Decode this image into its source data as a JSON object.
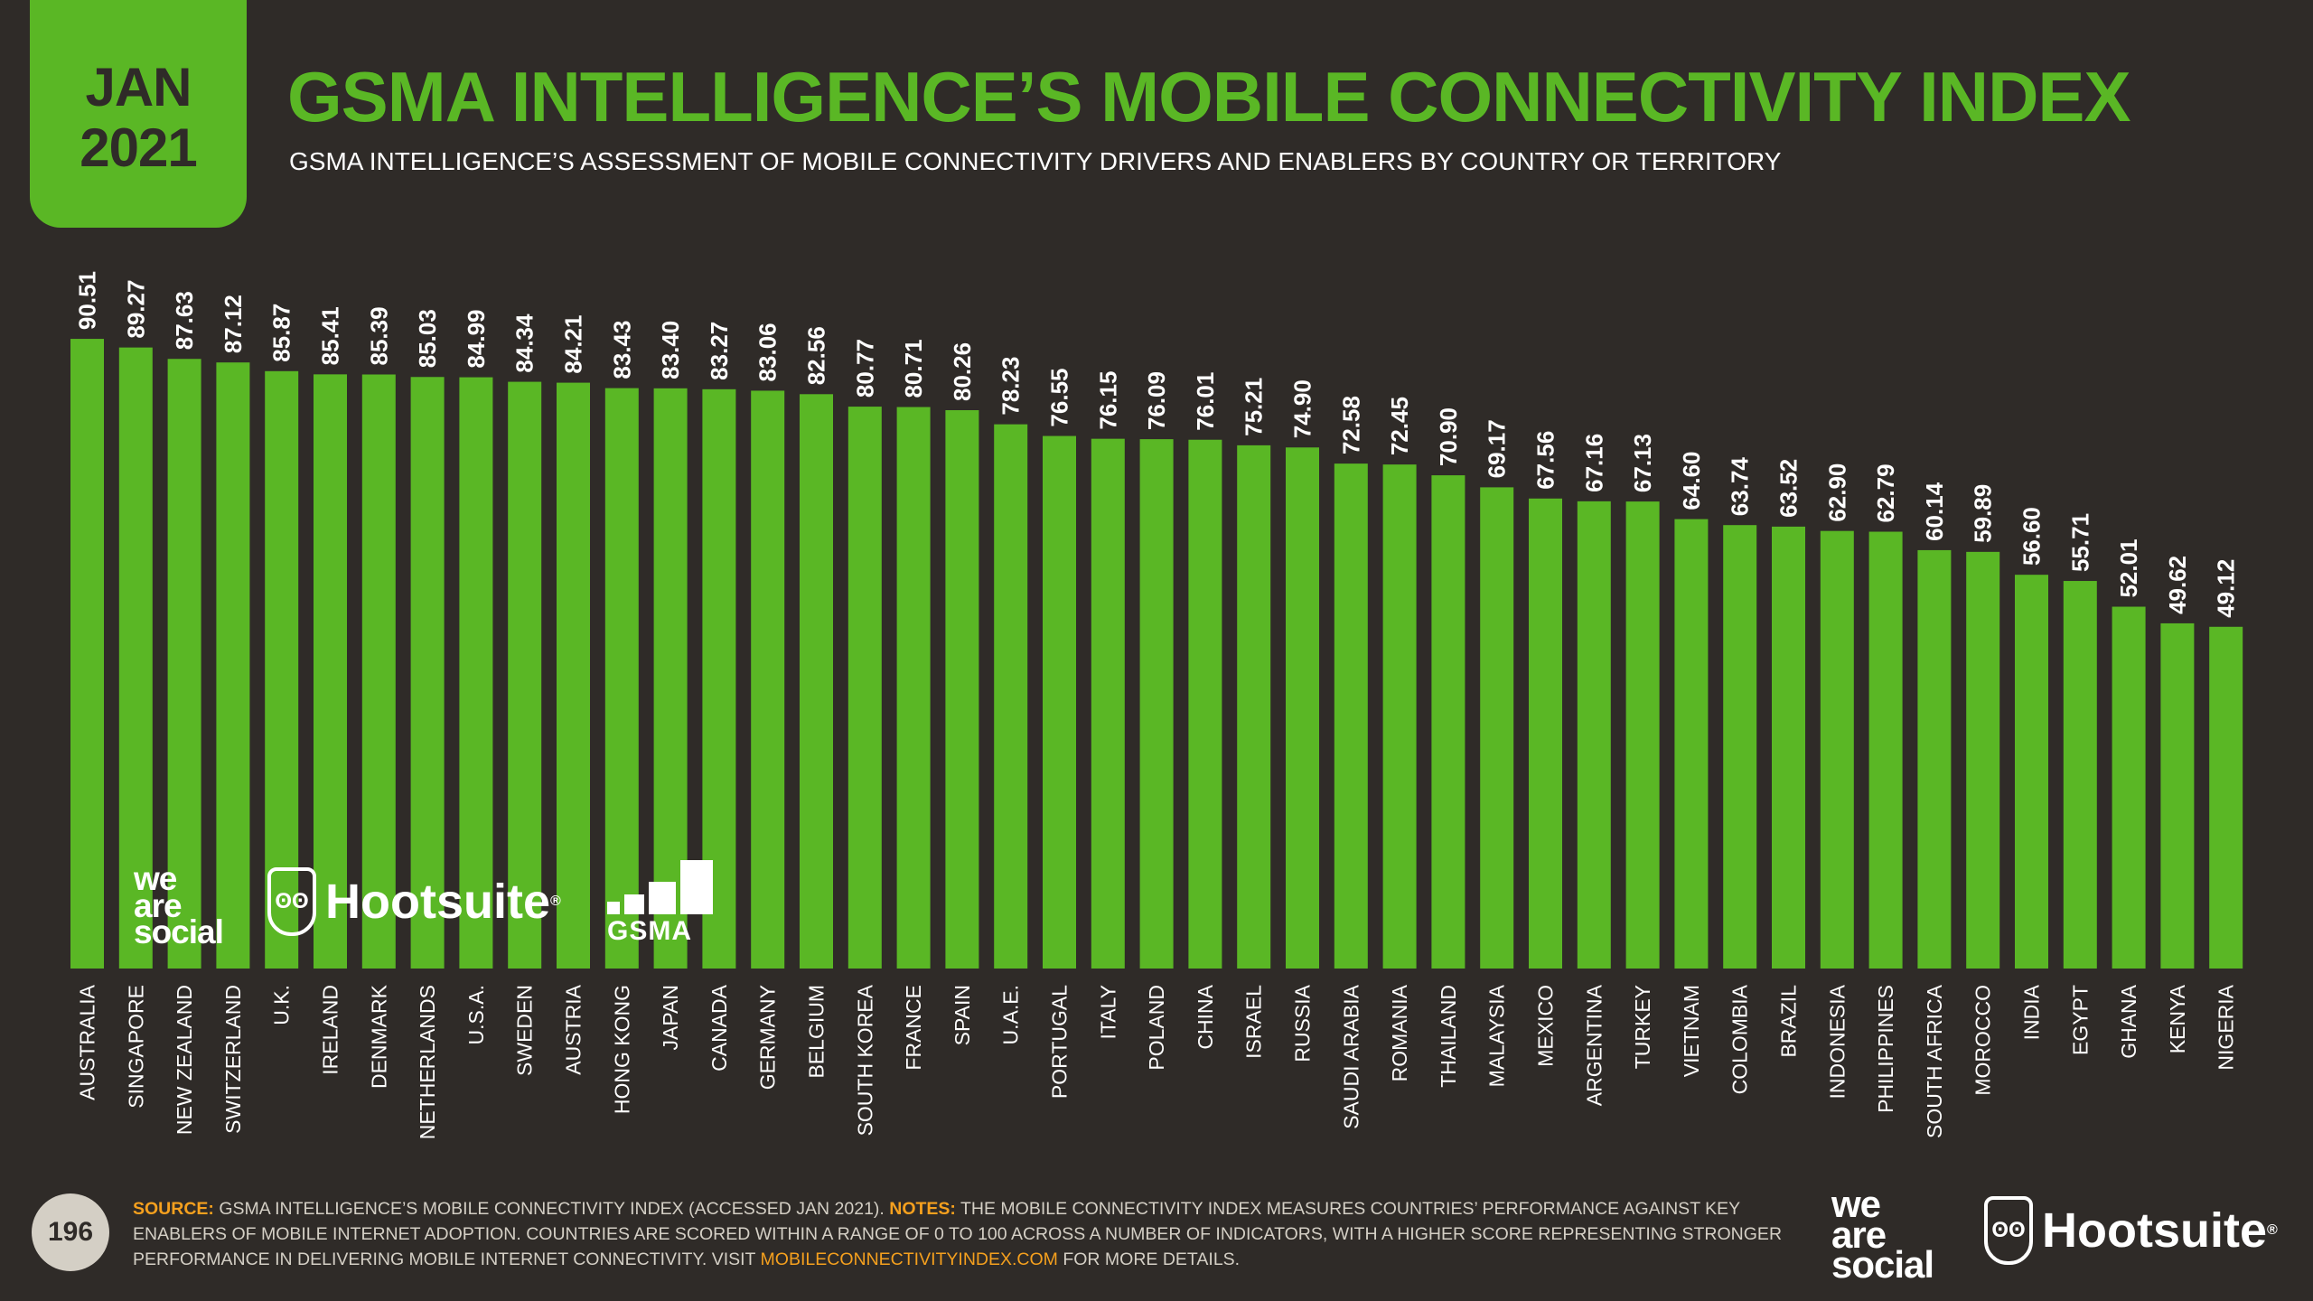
{
  "header": {
    "month": "JAN",
    "year": "2021",
    "title": "GSMA INTELLIGENCE’S MOBILE CONNECTIVITY INDEX",
    "subtitle": "GSMA INTELLIGENCE’S ASSESSMENT OF MOBILE CONNECTIVITY DRIVERS AND ENABLERS BY COUNTRY OR TERRITORY"
  },
  "colors": {
    "background": "#2f2b28",
    "accent": "#5ab725",
    "text": "#ffffff",
    "muted": "#d4cfc5",
    "highlight": "#f5a01e"
  },
  "chart_data": {
    "type": "bar",
    "title": "GSMA INTELLIGENCE’S MOBILE CONNECTIVITY INDEX",
    "xlabel": "",
    "ylabel": "",
    "ylim": [
      0,
      100
    ],
    "grid": false,
    "value_format": "0.00",
    "categories": [
      "AUSTRALIA",
      "SINGAPORE",
      "NEW ZEALAND",
      "SWITZERLAND",
      "U.K.",
      "IRELAND",
      "DENMARK",
      "NETHERLANDS",
      "U.S.A.",
      "SWEDEN",
      "AUSTRIA",
      "HONG KONG",
      "JAPAN",
      "CANADA",
      "GERMANY",
      "BELGIUM",
      "SOUTH KOREA",
      "FRANCE",
      "SPAIN",
      "U.A.E.",
      "PORTUGAL",
      "ITALY",
      "POLAND",
      "CHINA",
      "ISRAEL",
      "RUSSIA",
      "SAUDI ARABIA",
      "ROMANIA",
      "THAILAND",
      "MALAYSIA",
      "MEXICO",
      "ARGENTINA",
      "TURKEY",
      "VIETNAM",
      "COLOMBIA",
      "BRAZIL",
      "INDONESIA",
      "PHILIPPINES",
      "SOUTH AFRICA",
      "MOROCCO",
      "INDIA",
      "EGYPT",
      "GHANA",
      "KENYA",
      "NIGERIA"
    ],
    "values": [
      90.51,
      89.27,
      87.63,
      87.12,
      85.87,
      85.41,
      85.39,
      85.03,
      84.99,
      84.34,
      84.21,
      83.43,
      83.4,
      83.27,
      83.06,
      82.56,
      80.77,
      80.71,
      80.26,
      78.23,
      76.55,
      76.15,
      76.09,
      76.01,
      75.21,
      74.9,
      72.58,
      72.45,
      70.9,
      69.17,
      67.56,
      67.16,
      67.13,
      64.6,
      63.74,
      63.52,
      62.9,
      62.79,
      60.14,
      59.89,
      56.6,
      55.71,
      52.01,
      49.62,
      49.12
    ]
  },
  "logos": {
    "we_are_social": [
      "we",
      "are",
      "social"
    ],
    "hootsuite": "Hootsuite",
    "gsma": "GSMA",
    "registered": "®"
  },
  "footer": {
    "page_number": "196",
    "source_label": "SOURCE:",
    "source_text": " GSMA INTELLIGENCE’S MOBILE CONNECTIVITY INDEX (ACCESSED JAN 2021). ",
    "notes_label": "NOTES:",
    "notes_text": " THE MOBILE CONNECTIVITY INDEX MEASURES COUNTRIES’ PERFORMANCE AGAINST KEY ENABLERS OF MOBILE INTERNET ADOPTION. COUNTRIES ARE SCORED WITHIN A RANGE OF 0 TO 100 ACROSS A NUMBER OF INDICATORS, WITH A HIGHER SCORE REPRESENTING STRONGER PERFORMANCE IN DELIVERING MOBILE INTERNET CONNECTIVITY. VISIT ",
    "url": "MOBILECONNECTIVITYINDEX.COM",
    "tail": " FOR MORE DETAILS."
  }
}
